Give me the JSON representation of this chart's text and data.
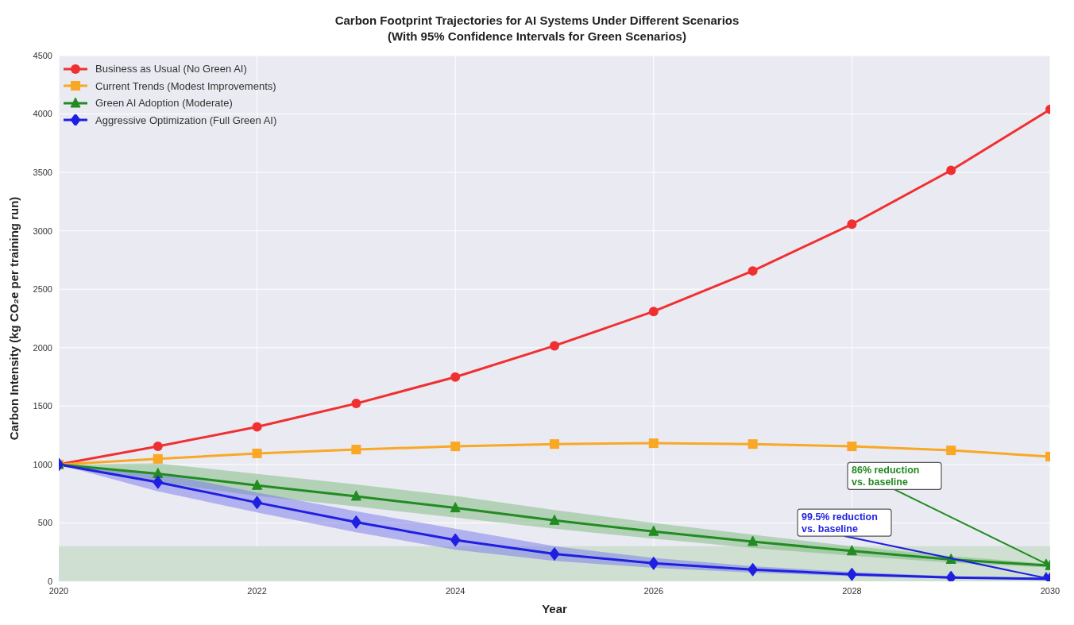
{
  "chart_data": {
    "type": "line",
    "title": "Carbon Footprint Trajectories for AI Systems Under Different Scenarios",
    "subtitle": "(With 95% Confidence Intervals for Green Scenarios)",
    "xlabel": "Year",
    "ylabel": "Carbon Intensity (kg CO₂e per training run)",
    "x": [
      2020,
      2021,
      2022,
      2023,
      2024,
      2025,
      2026,
      2027,
      2028,
      2029,
      2030
    ],
    "series": [
      {
        "name": "Business as Usual (No Green AI)",
        "color": "#f03030",
        "marker": "circle",
        "values": [
          1000,
          1155,
          1322,
          1522,
          1749,
          2016,
          2310,
          2657,
          3057,
          3518,
          4039
        ]
      },
      {
        "name": "Current Trends (Modest Improvements)",
        "color": "#f9a825",
        "marker": "square",
        "values": [
          1000,
          1048,
          1095,
          1128,
          1155,
          1175,
          1182,
          1175,
          1155,
          1121,
          1068
        ]
      },
      {
        "name": "Green AI Adoption (Moderate)",
        "color": "#228b22",
        "marker": "triangle",
        "values": [
          1000,
          921,
          821,
          728,
          628,
          521,
          427,
          340,
          260,
          187,
          134
        ],
        "lower": [
          1000,
          850,
          730,
          640,
          545,
          450,
          365,
          285,
          220,
          160,
          118
        ],
        "upper": [
          1000,
          1010,
          920,
          830,
          730,
          610,
          500,
          400,
          300,
          215,
          150
        ]
      },
      {
        "name": "Aggressive Optimization (Full Green AI)",
        "color": "#1f1fe0",
        "marker": "diamond",
        "values": [
          1000,
          848,
          674,
          507,
          354,
          234,
          154,
          100,
          60,
          33,
          20
        ],
        "lower": [
          1000,
          770,
          590,
          420,
          270,
          175,
          115,
          75,
          45,
          24,
          14
        ],
        "upper": [
          1000,
          930,
          760,
          600,
          450,
          300,
          200,
          130,
          80,
          45,
          28
        ]
      }
    ],
    "xlim": [
      2020,
      2030
    ],
    "xticks": [
      2020,
      2022,
      2024,
      2026,
      2028,
      2030
    ],
    "ylim": [
      0,
      4500
    ],
    "yticks": [
      0,
      500,
      1000,
      1500,
      2000,
      2500,
      3000,
      3500,
      4000,
      4500
    ],
    "bands": [
      {
        "axis": "y",
        "from": 0,
        "to": 300,
        "color": "#cfe0d3"
      }
    ],
    "annotations": [
      {
        "text": "86% reduction\nvs. baseline",
        "x": 2030,
        "y": 134
      },
      {
        "text": "99.5% reduction\nvs. baseline",
        "x": 2030,
        "y": 20
      }
    ],
    "grid": true,
    "legend": "top left",
    "line_style": "solid"
  }
}
